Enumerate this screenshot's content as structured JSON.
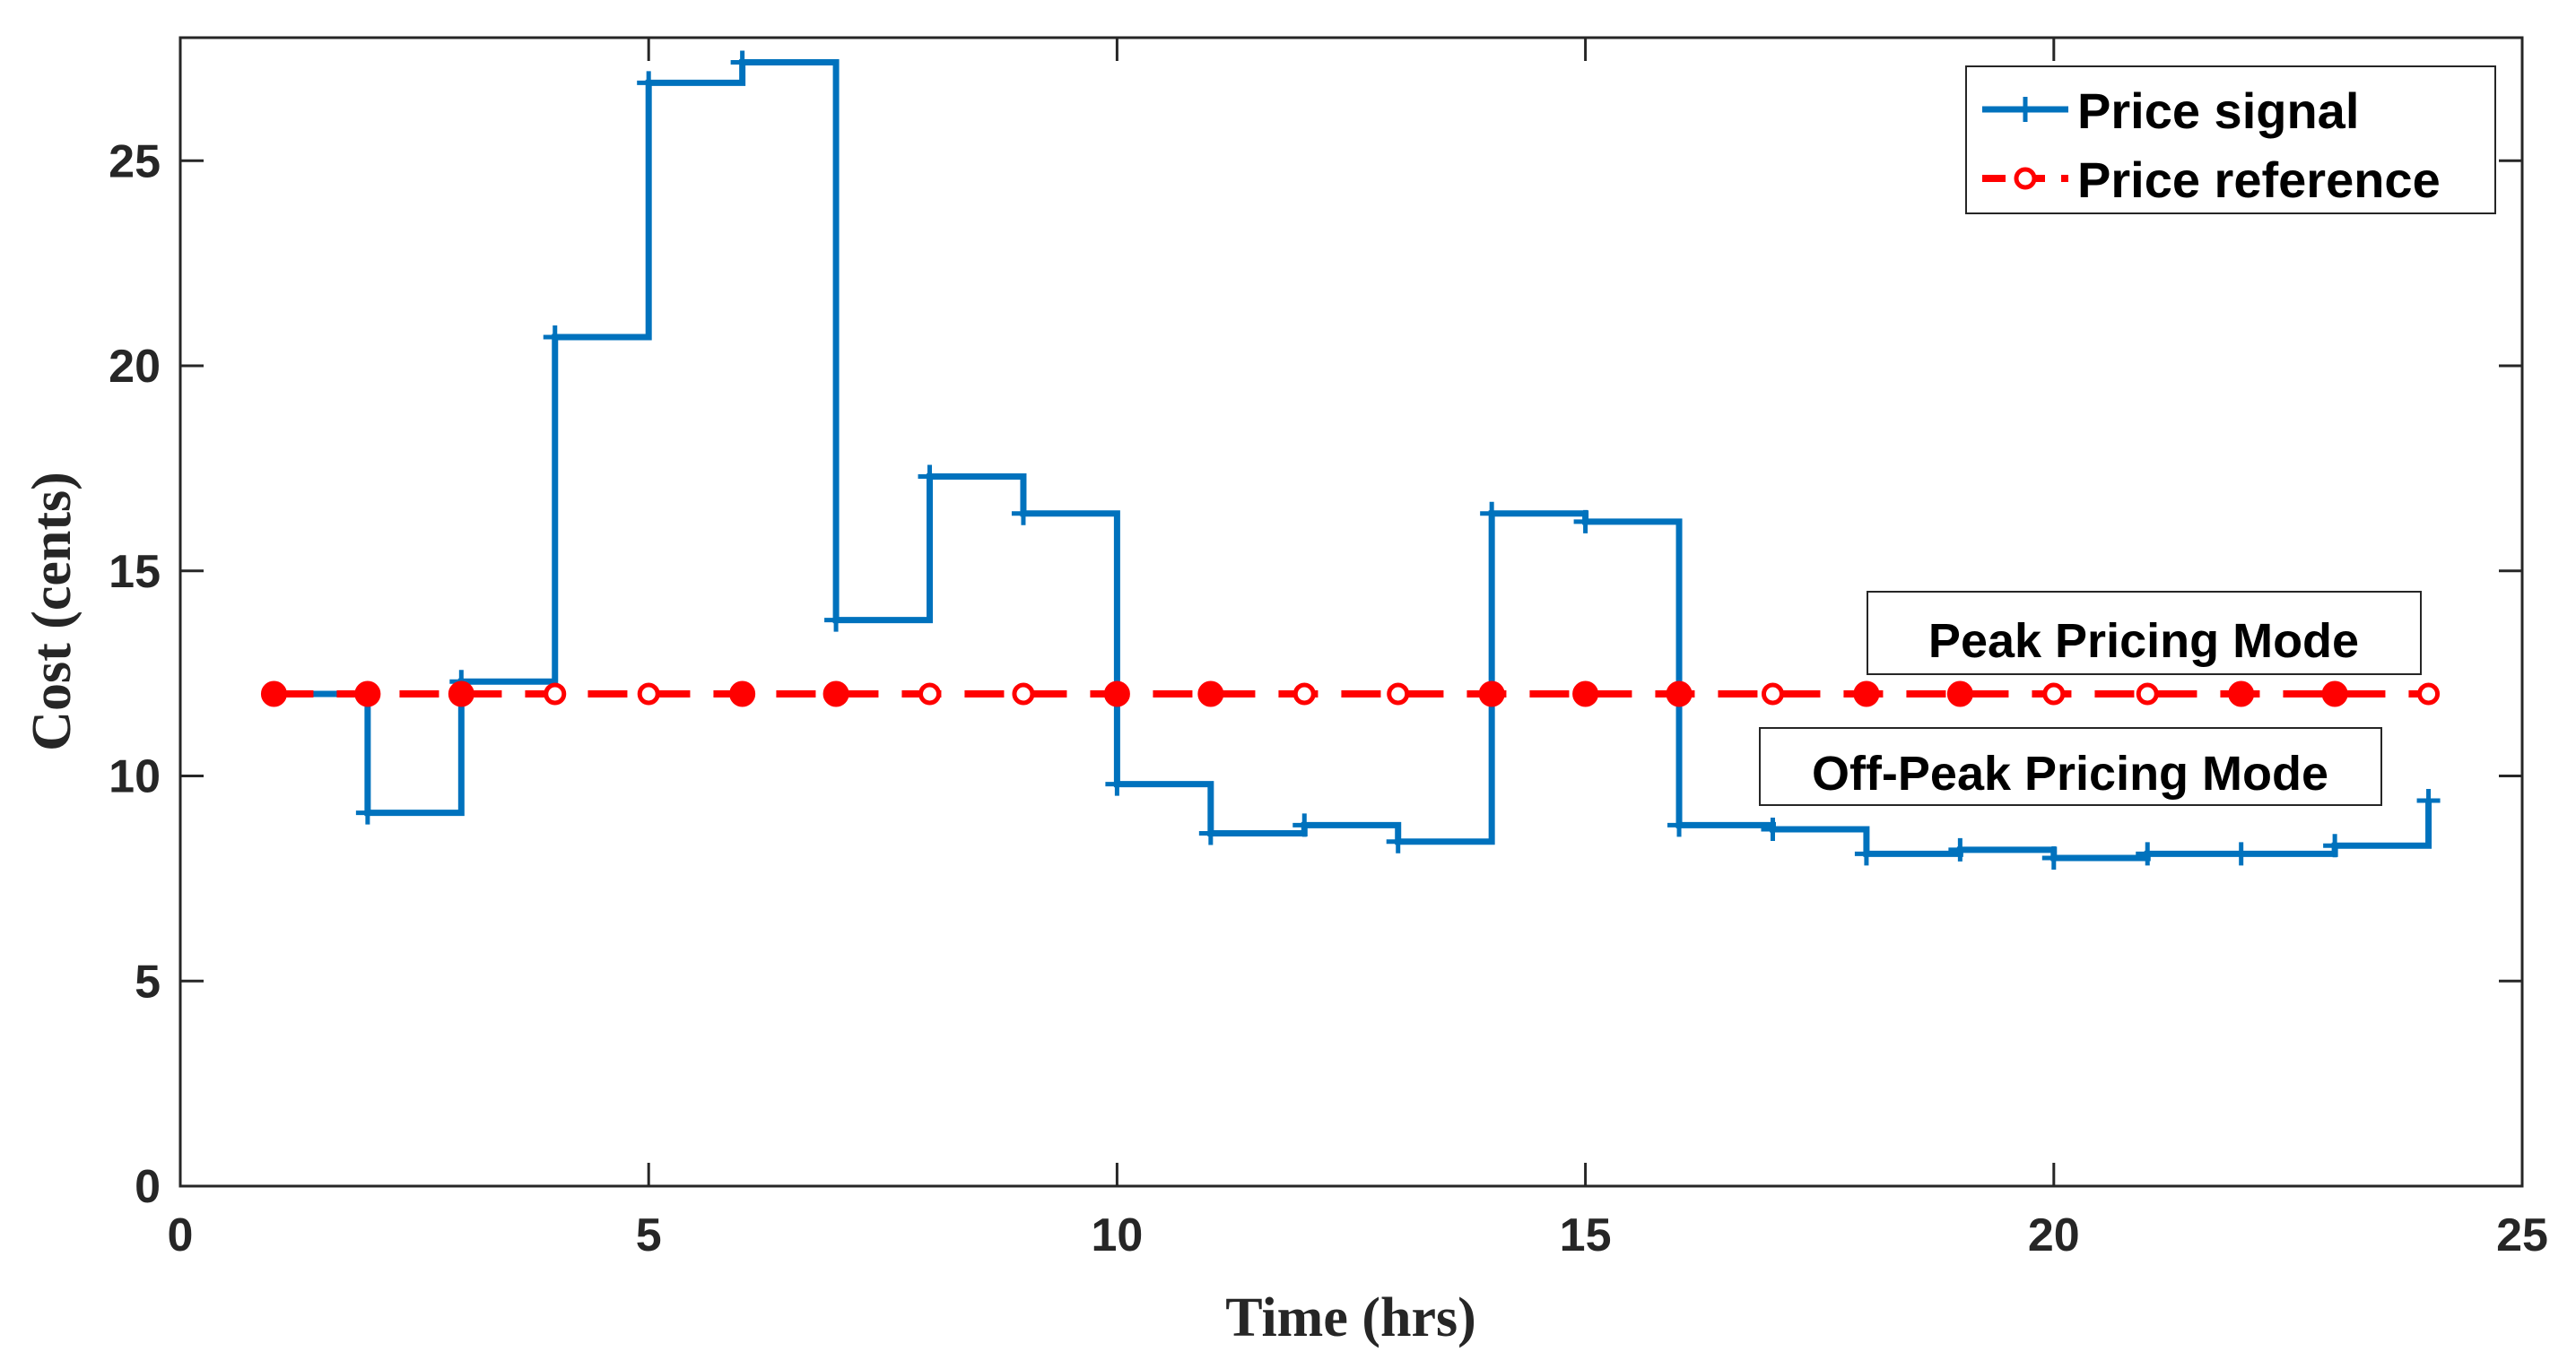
{
  "chart_data": {
    "type": "line",
    "title": "",
    "xlabel": "Time (hrs)",
    "ylabel": "Cost (cents)",
    "xlim": [
      0,
      25
    ],
    "ylim": [
      0,
      28
    ],
    "xticks": [
      0,
      5,
      10,
      15,
      20,
      25
    ],
    "yticks": [
      0,
      5,
      10,
      15,
      20,
      25
    ],
    "grid": false,
    "legend_position": "top-right",
    "x": [
      1,
      2,
      3,
      4,
      5,
      6,
      7,
      8,
      9,
      10,
      11,
      12,
      13,
      14,
      15,
      16,
      17,
      18,
      19,
      20,
      21,
      22,
      23,
      24
    ],
    "series": [
      {
        "name": "Price signal",
        "style": "stairs",
        "marker": "plus",
        "color": "#0072BD",
        "values": [
          12.0,
          9.1,
          12.3,
          20.7,
          26.9,
          27.4,
          13.8,
          17.3,
          16.4,
          9.8,
          8.6,
          8.8,
          8.4,
          16.4,
          16.2,
          8.8,
          8.7,
          8.1,
          8.2,
          8.0,
          8.1,
          8.1,
          8.3,
          9.4
        ]
      },
      {
        "name": "Price reference",
        "style": "dashed",
        "marker": "circle",
        "color": "#FF0000",
        "values": [
          12,
          12,
          12,
          12,
          12,
          12,
          12,
          12,
          12,
          12,
          12,
          12,
          12,
          12,
          12,
          12,
          12,
          12,
          12,
          12,
          12,
          12,
          12,
          12
        ],
        "filled_markers": [
          true,
          true,
          true,
          false,
          false,
          true,
          true,
          false,
          false,
          true,
          true,
          false,
          false,
          true,
          true,
          true,
          false,
          true,
          true,
          false,
          false,
          true,
          true,
          false
        ]
      }
    ],
    "annotations": [
      {
        "text": "Peak Pricing Mode"
      },
      {
        "text": "Off-Peak Pricing Mode"
      }
    ]
  }
}
